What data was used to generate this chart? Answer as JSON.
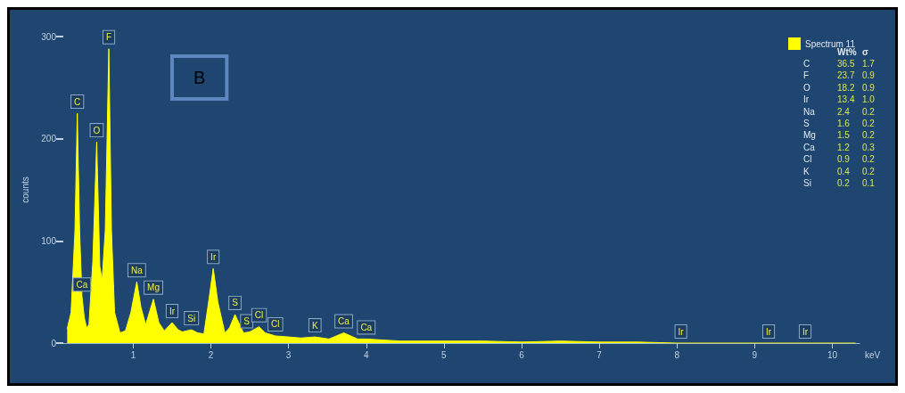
{
  "chart_data": {
    "type": "area",
    "xlabel": "keV",
    "ylabel": "counts",
    "xlim": [
      0.1,
      10.35
    ],
    "xticks": [
      1,
      2,
      3,
      4,
      5,
      6,
      7,
      8,
      9,
      10
    ],
    "ylim": [
      0,
      300
    ],
    "yticks": [
      0,
      100,
      200,
      300
    ],
    "grid": false,
    "legend": "top right",
    "marker": "none",
    "series": [
      {
        "name": "Spectrum 11",
        "color": "#ffff00",
        "x": [
          0.15,
          0.2,
          0.25,
          0.28,
          0.31,
          0.34,
          0.37,
          0.4,
          0.43,
          0.48,
          0.53,
          0.57,
          0.6,
          0.64,
          0.686,
          0.72,
          0.76,
          0.83,
          0.9,
          0.97,
          1.046,
          1.1,
          1.16,
          1.26,
          1.33,
          1.4,
          1.5,
          1.58,
          1.63,
          1.75,
          1.83,
          1.91,
          1.97,
          2.03,
          2.09,
          2.18,
          2.24,
          2.31,
          2.37,
          2.42,
          2.5,
          2.62,
          2.7,
          2.83,
          3.0,
          3.16,
          3.34,
          3.52,
          3.71,
          3.89,
          4.0,
          4.44,
          5.0,
          5.5,
          6.0,
          6.5,
          7.0,
          7.5,
          8.0,
          9.0,
          10.3
        ],
        "values": [
          14,
          30,
          110,
          225,
          110,
          46,
          25,
          15,
          18,
          80,
          197,
          75,
          62,
          110,
          288,
          110,
          30,
          10,
          12,
          30,
          60,
          35,
          18,
          43,
          20,
          12,
          20,
          13,
          11,
          13,
          10,
          9,
          40,
          73,
          40,
          10,
          15,
          28,
          18,
          10,
          11,
          16,
          10,
          7,
          6,
          5,
          6,
          4,
          10,
          4,
          4,
          2,
          2,
          2,
          1,
          2,
          1,
          1,
          0,
          0,
          0
        ]
      }
    ],
    "annotations": [
      "B",
      "Wt%",
      "σ",
      "C",
      "36.5",
      "1.7",
      "F",
      "23.7",
      "0.9",
      "O",
      "18.2",
      "0.9",
      "Ir",
      "13.4",
      "1.0",
      "Na",
      "2.4",
      "0.2",
      "S",
      "1.6",
      "0.2",
      "Mg",
      "1.5",
      "0.2",
      "Ca",
      "1.2",
      "0.3",
      "Cl",
      "0.9",
      "0.2",
      "K",
      "0.4",
      "0.2",
      "Si",
      "0.2",
      "0.1",
      {
        "text": "C",
        "x": 0.28,
        "y": 225
      },
      {
        "text": "Ca",
        "x": 0.34,
        "y": 46
      },
      {
        "text": "O",
        "x": 0.53,
        "y": 197
      },
      {
        "text": "F",
        "x": 0.686,
        "y": 288
      },
      {
        "text": "Na",
        "x": 1.046,
        "y": 60
      },
      {
        "text": "Mg",
        "x": 1.26,
        "y": 43
      },
      {
        "text": "Ir",
        "x": 1.5,
        "y": 20
      },
      {
        "text": "Si",
        "x": 1.75,
        "y": 13
      },
      {
        "text": "Ir",
        "x": 2.03,
        "y": 73
      },
      {
        "text": "S",
        "x": 2.31,
        "y": 28
      },
      {
        "text": "S",
        "x": 2.46,
        "y": 10
      },
      {
        "text": "Cl",
        "x": 2.62,
        "y": 16
      },
      {
        "text": "Cl",
        "x": 2.83,
        "y": 7
      },
      {
        "text": "K",
        "x": 3.34,
        "y": 6
      },
      {
        "text": "Ca",
        "x": 3.71,
        "y": 10
      },
      {
        "text": "Ca",
        "x": 4.0,
        "y": 4
      },
      {
        "text": "Ir",
        "x": 8.05,
        "y": 0
      },
      {
        "text": "Ir",
        "x": 9.18,
        "y": 0
      },
      {
        "text": "Ir",
        "x": 9.65,
        "y": 0
      }
    ]
  }
}
